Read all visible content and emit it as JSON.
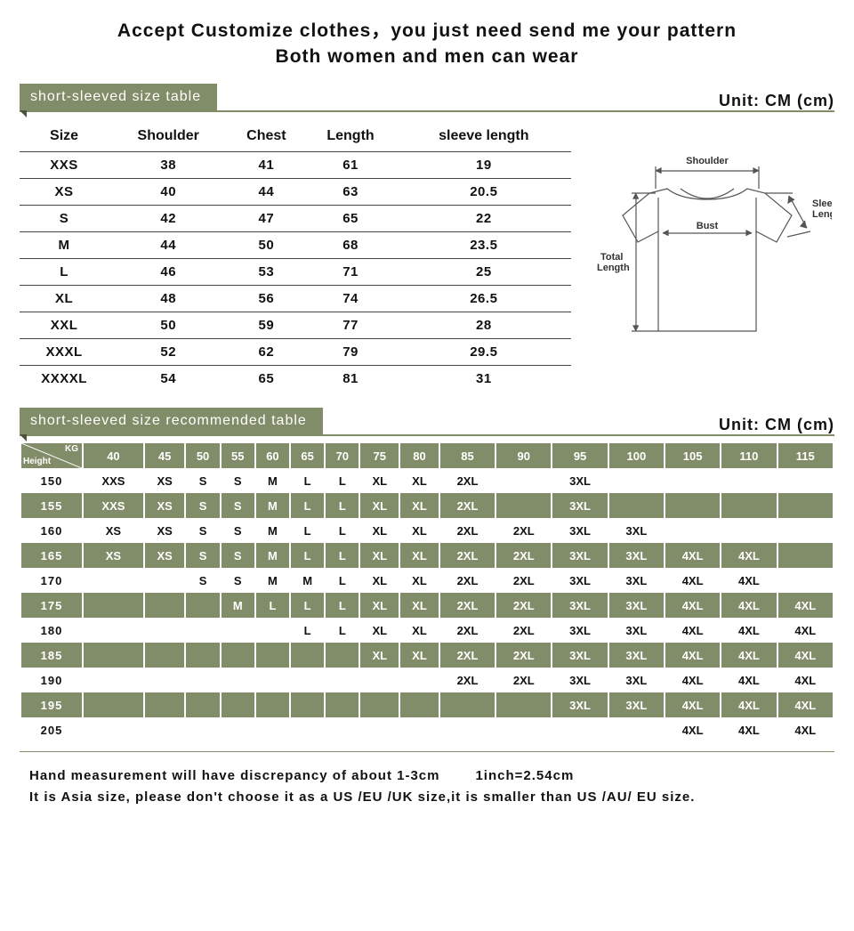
{
  "colors": {
    "olive": "#818c68",
    "oliveDark": "#4b543a",
    "text": "#111111",
    "bg": "#ffffff",
    "rowLine": "#444444"
  },
  "headline": {
    "line1": "Accept Customize clothes，you just need send me your pattern",
    "line2": "Both women and men can wear"
  },
  "section1": {
    "tab": "short-sleeved size table",
    "unit": "Unit: CM (cm)",
    "columns": [
      "Size",
      "Shoulder",
      "Chest",
      "Length",
      "sleeve length"
    ],
    "rows": [
      [
        "XXS",
        "38",
        "41",
        "61",
        "19"
      ],
      [
        "XS",
        "40",
        "44",
        "63",
        "20.5"
      ],
      [
        "S",
        "42",
        "47",
        "65",
        "22"
      ],
      [
        "M",
        "44",
        "50",
        "68",
        "23.5"
      ],
      [
        "L",
        "46",
        "53",
        "71",
        "25"
      ],
      [
        "XL",
        "48",
        "56",
        "74",
        "26.5"
      ],
      [
        "XXL",
        "50",
        "59",
        "77",
        "28"
      ],
      [
        "XXXL",
        "52",
        "62",
        "79",
        "29.5"
      ],
      [
        "XXXXL",
        "54",
        "65",
        "81",
        "31"
      ]
    ]
  },
  "diagram": {
    "labels": {
      "shoulder": "Shoulder",
      "bust": "Bust",
      "sleeve1": "Sleeve",
      "sleeve2": "Length",
      "total1": "Total",
      "total2": "Length"
    }
  },
  "section2": {
    "tab": "short-sleeved size recommended table",
    "unit": "Unit: CM (cm)",
    "kgLabel": "KG",
    "heightLabel": "Height",
    "weights": [
      "40",
      "45",
      "50",
      "55",
      "60",
      "65",
      "70",
      "75",
      "80",
      "85",
      "90",
      "95",
      "100",
      "105",
      "110",
      "115"
    ],
    "rows": [
      {
        "h": "150",
        "shade": false,
        "cells": [
          "XXS",
          "XS",
          "S",
          "S",
          "M",
          "L",
          "L",
          "XL",
          "XL",
          "2XL",
          "",
          "3XL",
          "",
          "",
          "",
          ""
        ]
      },
      {
        "h": "155",
        "shade": true,
        "cells": [
          "XXS",
          "XS",
          "S",
          "S",
          "M",
          "L",
          "L",
          "XL",
          "XL",
          "2XL",
          "",
          "3XL",
          "",
          "",
          "",
          ""
        ]
      },
      {
        "h": "160",
        "shade": false,
        "cells": [
          "XS",
          "XS",
          "S",
          "S",
          "M",
          "L",
          "L",
          "XL",
          "XL",
          "2XL",
          "2XL",
          "3XL",
          "3XL",
          "",
          "",
          ""
        ]
      },
      {
        "h": "165",
        "shade": true,
        "cells": [
          "XS",
          "XS",
          "S",
          "S",
          "M",
          "L",
          "L",
          "XL",
          "XL",
          "2XL",
          "2XL",
          "3XL",
          "3XL",
          "4XL",
          "4XL",
          ""
        ]
      },
      {
        "h": "170",
        "shade": false,
        "cells": [
          "",
          "",
          "S",
          "S",
          "M",
          "M",
          "L",
          "XL",
          "XL",
          "2XL",
          "2XL",
          "3XL",
          "3XL",
          "4XL",
          "4XL",
          ""
        ]
      },
      {
        "h": "175",
        "shade": true,
        "cells": [
          "",
          "",
          "",
          "M",
          "L",
          "L",
          "L",
          "XL",
          "XL",
          "2XL",
          "2XL",
          "3XL",
          "3XL",
          "4XL",
          "4XL",
          "4XL"
        ]
      },
      {
        "h": "180",
        "shade": false,
        "cells": [
          "",
          "",
          "",
          "",
          "",
          "L",
          "L",
          "XL",
          "XL",
          "2XL",
          "2XL",
          "3XL",
          "3XL",
          "4XL",
          "4XL",
          "4XL"
        ]
      },
      {
        "h": "185",
        "shade": true,
        "cells": [
          "",
          "",
          "",
          "",
          "",
          "",
          "",
          "XL",
          "XL",
          "2XL",
          "2XL",
          "3XL",
          "3XL",
          "4XL",
          "4XL",
          "4XL"
        ]
      },
      {
        "h": "190",
        "shade": false,
        "cells": [
          "",
          "",
          "",
          "",
          "",
          "",
          "",
          "",
          "",
          "2XL",
          "2XL",
          "3XL",
          "3XL",
          "4XL",
          "4XL",
          "4XL"
        ]
      },
      {
        "h": "195",
        "shade": true,
        "cells": [
          "",
          "",
          "",
          "",
          "",
          "",
          "",
          "",
          "",
          "",
          "",
          "3XL",
          "3XL",
          "4XL",
          "4XL",
          "4XL"
        ]
      },
      {
        "h": "205",
        "shade": false,
        "cells": [
          "",
          "",
          "",
          "",
          "",
          "",
          "",
          "",
          "",
          "",
          "",
          "",
          "",
          "4XL",
          "4XL",
          "4XL"
        ]
      }
    ]
  },
  "note": {
    "line1a": "Hand measurement will have discrepancy of about 1-3cm",
    "line1b": "1inch=2.54cm",
    "line2": "It is Asia size, please don't choose it as a US /EU /UK size,it is smaller than US /AU/ EU size."
  }
}
